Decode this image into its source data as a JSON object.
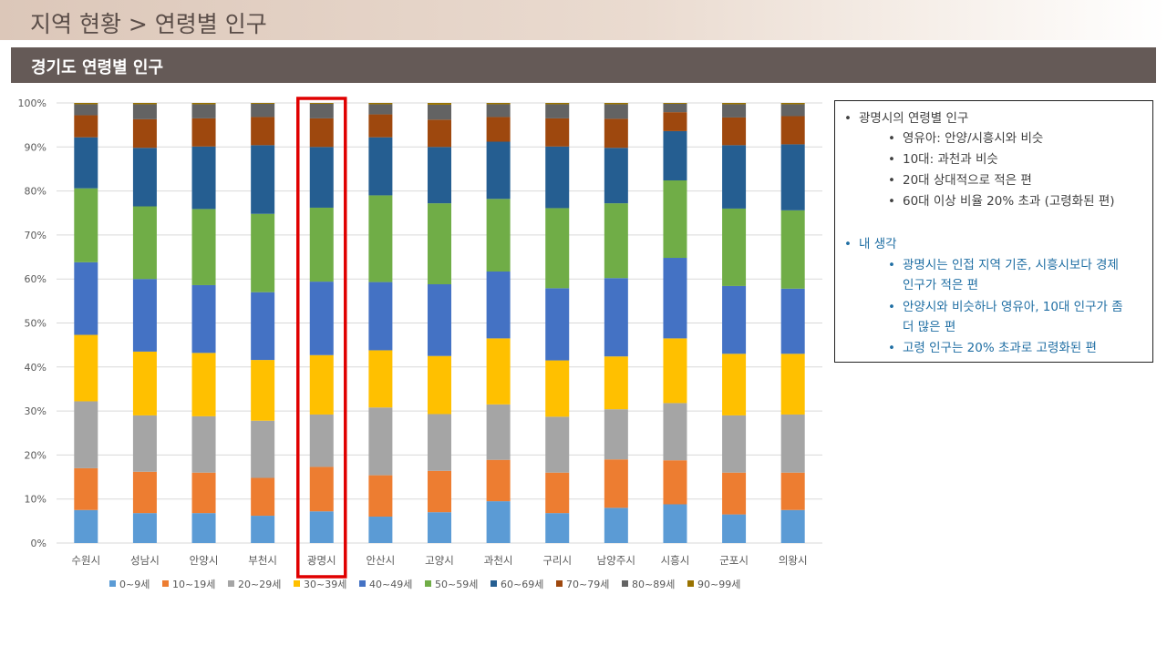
{
  "header": {
    "title": "지역 현황 > 연령별 인구",
    "section_title": "경기도 연령별 인구"
  },
  "notes": {
    "item1": {
      "text": "광명시의 연령별 인구",
      "sub": [
        "영유아: 안양/시흥시와 비슷",
        "10대: 과천과 비슷",
        "20대 상대적으로 적은 편",
        "60대 이상 비율 20% 초과 (고령화된 편)"
      ]
    },
    "item2": {
      "text": "내 생각",
      "sub": [
        "광명시는 인접 지역 기준, 시흥시보다 경제",
        "인구가 적은 편",
        "안양시와 비슷하나 영유아, 10대 인구가 좀",
        "더 많은 편",
        "고령 인구는 20% 초과로 고령화된 편"
      ]
    }
  },
  "chart_data": {
    "type": "bar",
    "stacked": "percent",
    "categories": [
      "수원시",
      "성남시",
      "안양시",
      "부천시",
      "광명시",
      "안산시",
      "고양시",
      "과천시",
      "구리시",
      "남양주시",
      "시흥시",
      "군포시",
      "의왕시"
    ],
    "highlight": "광명시",
    "ylim": [
      0,
      100
    ],
    "yticks": [
      "0%",
      "10%",
      "20%",
      "30%",
      "40%",
      "50%",
      "60%",
      "70%",
      "80%",
      "90%",
      "100%"
    ],
    "legend_position": "bottom",
    "grid": true,
    "series": [
      {
        "name": "0~9세",
        "color": "#5b9bd5",
        "values": [
          7.5,
          6.8,
          6.8,
          6.2,
          7.2,
          6.0,
          7.0,
          9.5,
          6.8,
          8.0,
          8.8,
          6.5,
          7.5
        ]
      },
      {
        "name": "10~19세",
        "color": "#ed7d31",
        "values": [
          9.5,
          9.4,
          9.2,
          8.6,
          10.1,
          9.4,
          9.4,
          9.4,
          9.2,
          11.0,
          10.0,
          9.5,
          8.5
        ]
      },
      {
        "name": "20~29세",
        "color": "#a5a5a5",
        "values": [
          15.2,
          12.8,
          12.8,
          13.0,
          11.9,
          15.4,
          12.9,
          12.6,
          12.7,
          11.4,
          13.0,
          13.0,
          13.2
        ]
      },
      {
        "name": "30~39세",
        "color": "#ffc000",
        "values": [
          15.1,
          14.5,
          14.4,
          13.8,
          13.5,
          13.0,
          13.2,
          15.0,
          12.8,
          12.0,
          14.7,
          14.0,
          13.8
        ]
      },
      {
        "name": "40~49세",
        "color": "#4472c4",
        "values": [
          16.5,
          16.5,
          15.4,
          15.4,
          16.7,
          15.5,
          16.3,
          15.2,
          16.4,
          17.8,
          18.3,
          15.4,
          14.8
        ]
      },
      {
        "name": "50~59세",
        "color": "#70ad47",
        "values": [
          16.8,
          16.5,
          17.3,
          17.8,
          16.8,
          19.7,
          18.4,
          16.5,
          18.2,
          17.0,
          17.6,
          17.6,
          17.8
        ]
      },
      {
        "name": "60~69세",
        "color": "#255e91",
        "values": [
          11.6,
          13.3,
          14.2,
          15.6,
          13.8,
          13.2,
          12.8,
          13.0,
          14.0,
          12.6,
          11.2,
          14.4,
          15.0
        ]
      },
      {
        "name": "70~79세",
        "color": "#9e480e",
        "values": [
          5.0,
          6.5,
          6.4,
          6.4,
          6.5,
          5.2,
          6.2,
          5.6,
          6.4,
          6.6,
          4.3,
          6.3,
          6.4
        ]
      },
      {
        "name": "80~89세",
        "color": "#636363",
        "values": [
          2.5,
          3.4,
          3.2,
          3.0,
          3.3,
          2.3,
          3.4,
          2.9,
          3.2,
          3.3,
          1.9,
          3.0,
          2.7
        ]
      },
      {
        "name": "90~99세",
        "color": "#997300",
        "values": [
          0.3,
          0.3,
          0.3,
          0.2,
          0.2,
          0.3,
          0.4,
          0.3,
          0.3,
          0.3,
          0.2,
          0.3,
          0.3
        ]
      }
    ]
  }
}
